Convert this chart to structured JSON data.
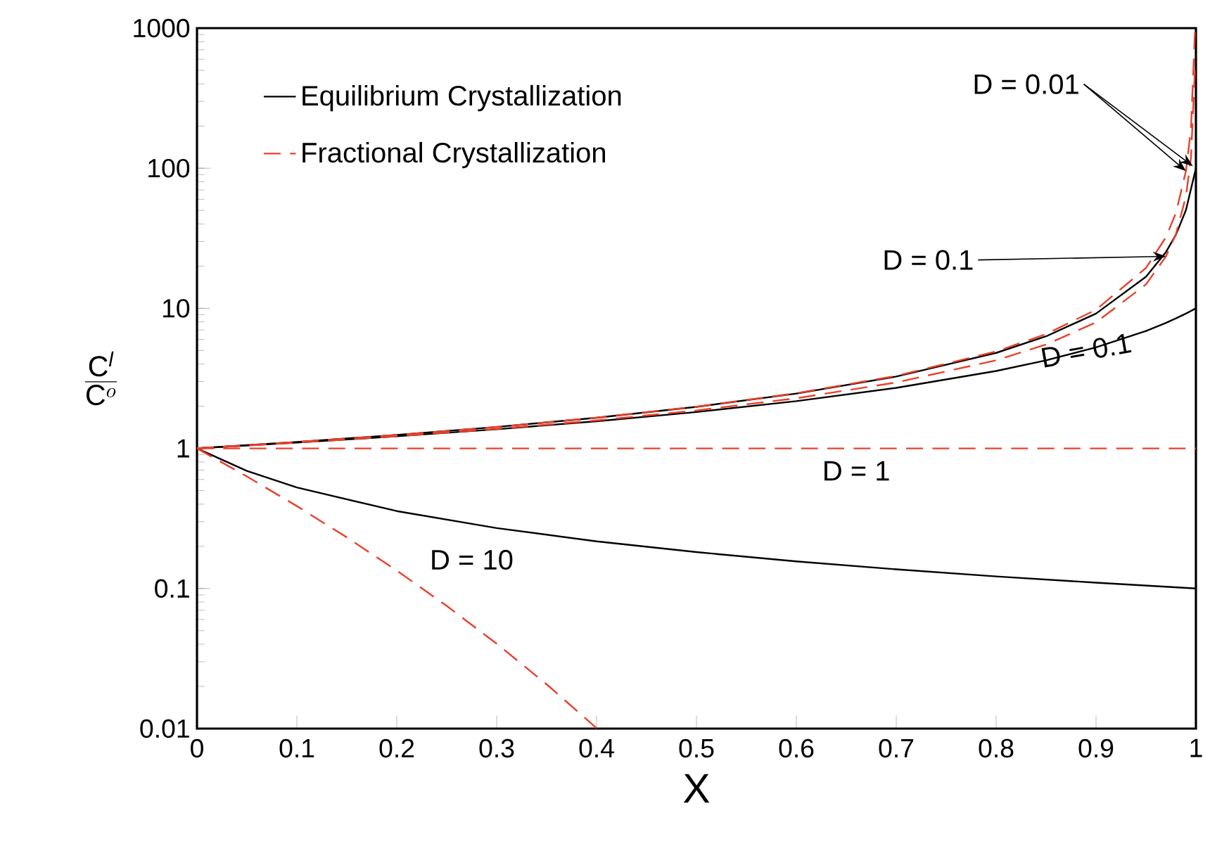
{
  "chart_data": {
    "type": "line",
    "xlabel": "X",
    "ylabel": "\\frac{\\mathrm{C}^{\\mathit{l}}}{\\mathrm{C}^{o}}",
    "log": "y",
    "xlim": [
      0,
      1
    ],
    "ylim": [
      0.01,
      1000
    ],
    "xticks": [
      0,
      0.1,
      0.2,
      0.3,
      0.4,
      0.5,
      0.6,
      0.7,
      0.8,
      0.9,
      1
    ],
    "yticks": [
      0.01,
      0.1,
      1,
      10,
      100,
      1000
    ],
    "legend": "top left",
    "grid": false,
    "marker": "none",
    "series": [
      {
        "name": "Equilibrium Crystallization",
        "color": "#000000",
        "line_style": "solid",
        "x": [
          0,
          0.1,
          0.2,
          0.3,
          0.4,
          0.5,
          0.6,
          0.7,
          0.8,
          0.85,
          0.9,
          0.95,
          0.97,
          0.98,
          0.99,
          1
        ],
        "values": [
          1,
          1.11,
          1.247,
          1.422,
          1.656,
          1.98,
          2.463,
          3.257,
          4.808,
          6.309,
          9.174,
          16.81,
          25.19,
          33.56,
          50.25,
          100
        ]
      },
      {
        "color": "#000000",
        "line_style": "solid",
        "x": [
          0,
          0.1,
          0.2,
          0.3,
          0.4,
          0.5,
          0.6,
          0.7,
          0.8,
          0.85,
          0.9,
          0.95,
          0.97,
          0.98,
          0.99,
          1
        ],
        "values": [
          1,
          1.099,
          1.22,
          1.37,
          1.5625,
          1.818,
          2.174,
          2.703,
          3.571,
          4.255,
          5.263,
          6.897,
          7.874,
          8.475,
          9.174,
          10
        ]
      },
      {
        "color": "#000000",
        "line_style": "solid",
        "x": [
          0,
          0.05,
          0.1,
          0.2,
          0.3,
          0.4,
          0.5,
          0.6,
          0.7,
          0.8,
          0.9,
          1
        ],
        "values": [
          1,
          0.69,
          0.526,
          0.357,
          0.27,
          0.217,
          0.182,
          0.156,
          0.137,
          0.122,
          0.11,
          0.1
        ]
      },
      {
        "name": "Fractional Crystallization",
        "color": "#e8412c",
        "line_style": "dashed",
        "x": [
          0,
          0.1,
          0.2,
          0.3,
          0.4,
          0.5,
          0.6,
          0.7,
          0.8,
          0.85,
          0.9,
          0.95,
          0.97,
          0.98,
          0.99,
          0.995,
          0.999
        ],
        "values": [
          1,
          1.11,
          1.247,
          1.4235,
          1.658,
          1.986,
          2.477,
          3.293,
          4.92,
          6.541,
          9.772,
          19.41,
          32.18,
          48.08,
          95.5,
          189.7,
          933
        ]
      },
      {
        "color": "#e8412c",
        "line_style": "dashed",
        "x": [
          0,
          0.1,
          0.2,
          0.3,
          0.4,
          0.5,
          0.6,
          0.7,
          0.8,
          0.85,
          0.9,
          0.95,
          0.97,
          0.98,
          0.99,
          0.995,
          0.999
        ],
        "values": [
          1,
          1.0995,
          1.222,
          1.3785,
          1.584,
          1.866,
          2.281,
          2.955,
          4.257,
          5.515,
          7.943,
          14.82,
          23.47,
          33.81,
          63.1,
          117.7,
          501.2
        ]
      },
      {
        "color": "#e8412c",
        "line_style": "dashed",
        "x": [
          0,
          1
        ],
        "values": [
          1,
          1
        ]
      },
      {
        "color": "#e8412c",
        "line_style": "dashed",
        "x": [
          0,
          0.05,
          0.1,
          0.15,
          0.2,
          0.25,
          0.3,
          0.35,
          0.4
        ],
        "values": [
          1,
          0.6302,
          0.3874,
          0.2316,
          0.1342,
          0.0751,
          0.04035,
          0.02071,
          0.01008
        ]
      }
    ],
    "annotations": [
      {
        "text": "D = 0.01",
        "x": 0.99,
        "y": 95.5
      },
      {
        "text": "D = 0.1",
        "x": 0.97,
        "y": 23.47
      },
      "D = 0.1",
      "D = 1",
      "D = 10"
    ]
  }
}
